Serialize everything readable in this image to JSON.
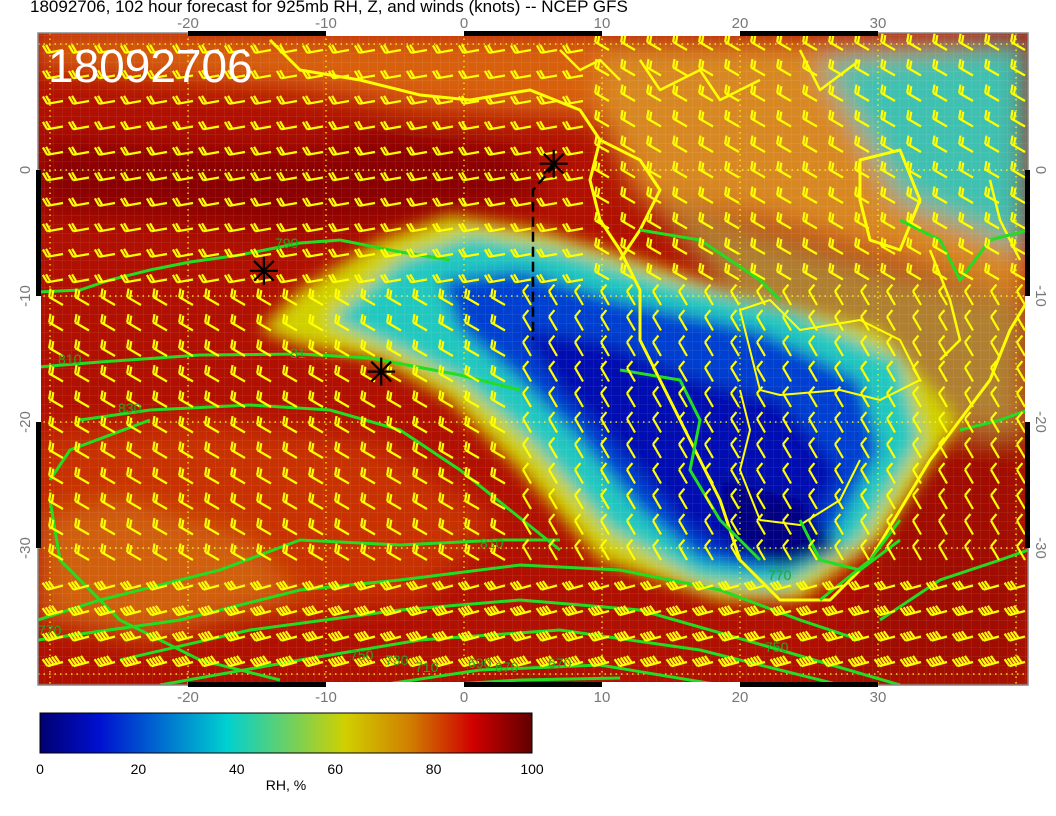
{
  "title": "18092706, 102 hour forecast for 925mb RH, Z, and winds (knots) -- NCEP GFS",
  "stamp": "18092706",
  "map": {
    "lon_range": [
      -31,
      41
    ],
    "lat_range": [
      -40,
      10.5
    ],
    "lon_ticks": [
      "-20",
      "-10",
      "0",
      "10",
      "20",
      "30"
    ],
    "lat_ticks": [
      "0",
      "-10",
      "-20",
      "-30"
    ],
    "contour_labels": [
      "790",
      "810",
      "81",
      "830",
      "810",
      "770",
      "750",
      "730",
      "710",
      "690",
      "670",
      "670",
      "750",
      "770"
    ],
    "markers": [
      {
        "name": "star",
        "lon": 6.5,
        "lat": 0.5
      },
      {
        "name": "star",
        "lon": -14.5,
        "lat": -8
      },
      {
        "name": "star",
        "lon": -6,
        "lat": -16
      }
    ],
    "colors": {
      "contour": "#22dd22",
      "coast": "#ffff00",
      "barb": "#ffff00",
      "marker": "#000000"
    }
  },
  "colorbar": {
    "ticks": [
      "0",
      "20",
      "40",
      "60",
      "80",
      "100"
    ],
    "label": "RH, %",
    "range": [
      0,
      100
    ],
    "stops": [
      {
        "v": 0,
        "c": "#000070"
      },
      {
        "v": 12,
        "c": "#0010d0"
      },
      {
        "v": 38,
        "c": "#00d0d0"
      },
      {
        "v": 62,
        "c": "#d0d000"
      },
      {
        "v": 75,
        "c": "#d08000"
      },
      {
        "v": 88,
        "c": "#d00000"
      },
      {
        "v": 100,
        "c": "#600000"
      }
    ]
  }
}
